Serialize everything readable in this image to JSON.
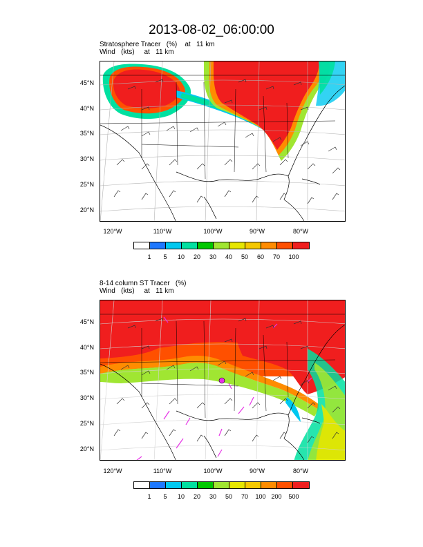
{
  "title": "2013-08-02_06:00:00",
  "panels": [
    {
      "title_line1": "Stratosphere Tracer   (%)    at   11 km",
      "title_line2": "Wind   (kts)     at   11 km",
      "lat_labels": [
        "45°N",
        "40°N",
        "35°N",
        "30°N",
        "25°N",
        "20°N"
      ],
      "lon_labels": [
        "120°W",
        "110°W",
        "100°W",
        "90°W",
        "80°W"
      ],
      "colorbar_labels": [
        "1",
        "5",
        "10",
        "20",
        "30",
        "40",
        "50",
        "60",
        "70",
        "100"
      ]
    },
    {
      "title_line1": "8-14 column ST Tracer   (%)",
      "title_line2": "Wind   (kts)     at   11 km",
      "lat_labels": [
        "45°N",
        "40°N",
        "35°N",
        "30°N",
        "25°N",
        "20°N"
      ],
      "lon_labels": [
        "120°W",
        "110°W",
        "100°W",
        "90°W",
        "80°W"
      ],
      "colorbar_labels": [
        "1",
        "5",
        "10",
        "20",
        "30",
        "50",
        "70",
        "100",
        "200",
        "500"
      ]
    }
  ],
  "colors": [
    "#ffffff",
    "#1e78ff",
    "#00c8f0",
    "#00e0a0",
    "#00c800",
    "#a0e632",
    "#e6e600",
    "#f5c800",
    "#ff8c00",
    "#ff5000",
    "#f01e1e"
  ],
  "icons": [
    "wind-barb-icon"
  ]
}
